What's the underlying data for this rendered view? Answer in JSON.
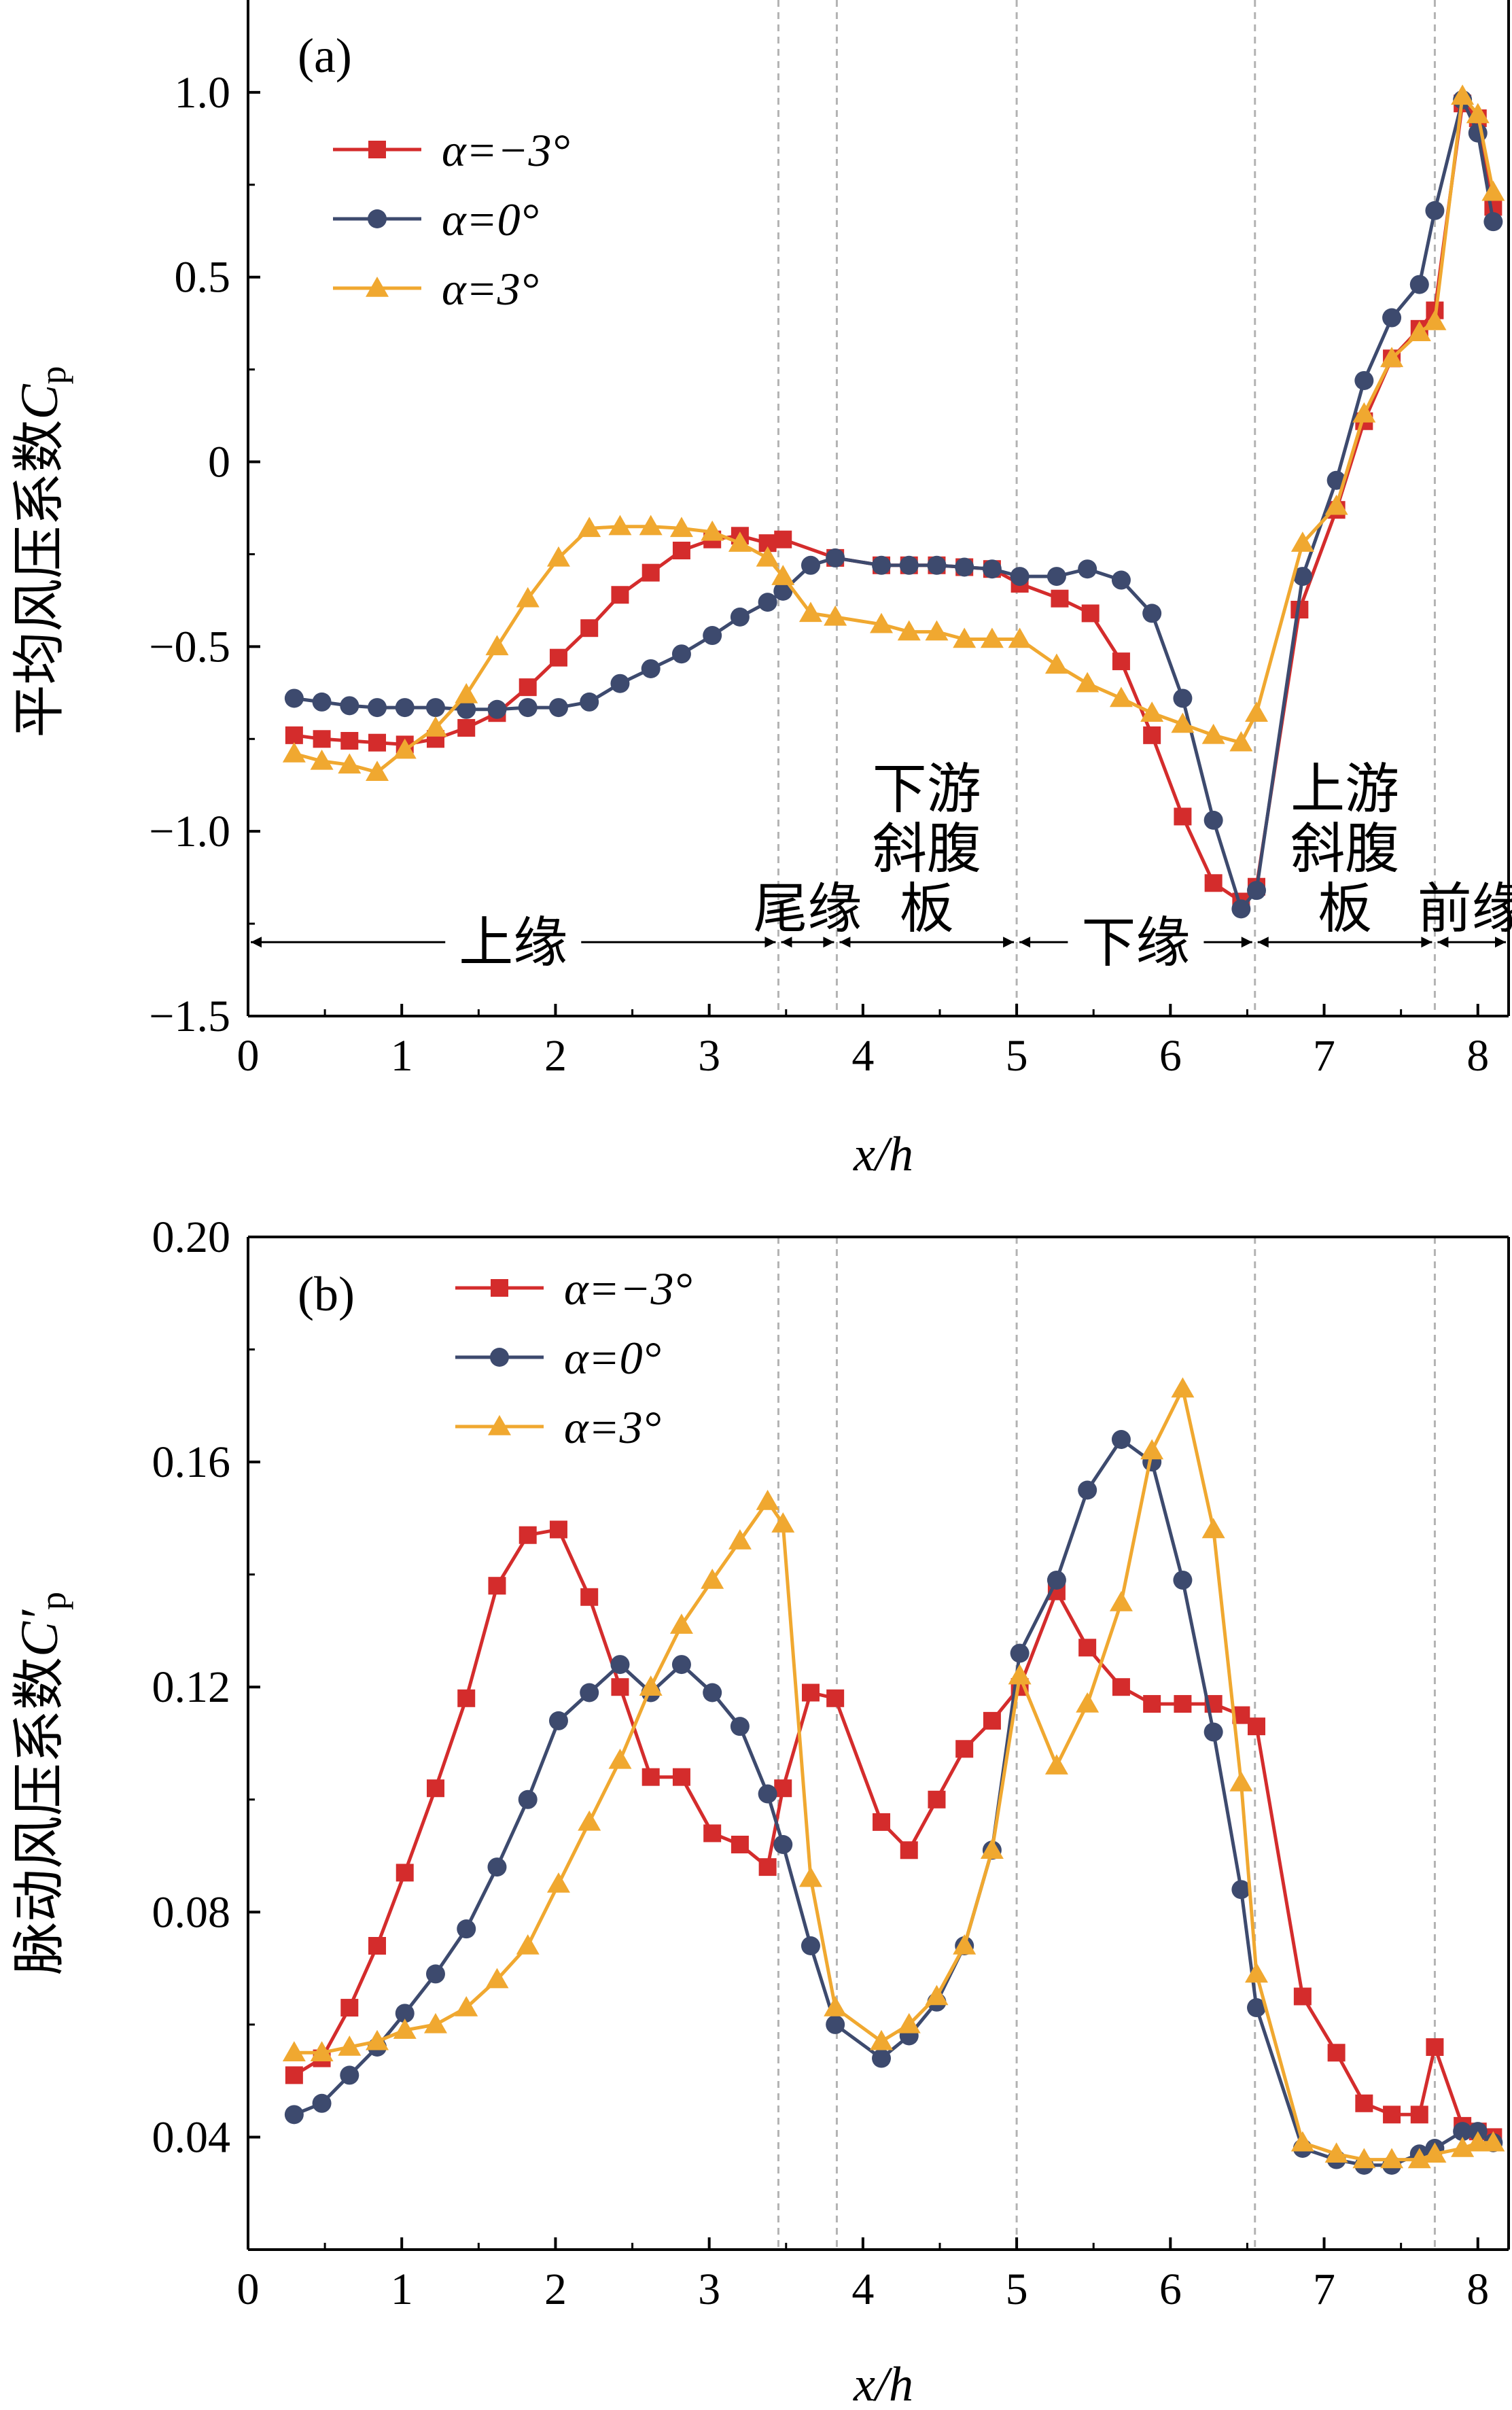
{
  "colors": {
    "alpha_neg3": "#d42c2c",
    "alpha_0": "#3d4a6e",
    "alpha_pos3": "#f0a830",
    "vline": "#b3b3b3"
  },
  "chart_data": [
    {
      "id": "a",
      "type": "line",
      "panel_label": "(a)",
      "ylabel": "平均风压系数C̄p",
      "ylabel_main": "平均风压系数",
      "ylabel_symbol": "C",
      "ylabel_sub": "p",
      "xlabel": "x/h",
      "xlim": [
        0,
        8.2
      ],
      "ylim": [
        -1.5,
        1.25
      ],
      "xticks": [
        "0",
        "1",
        "2",
        "3",
        "4",
        "5",
        "6",
        "7",
        "8"
      ],
      "yticks": [
        {
          "v": 1.0,
          "label": "1.0"
        },
        {
          "v": 0.5,
          "label": "0.5"
        },
        {
          "v": 0,
          "label": "0"
        },
        {
          "v": -0.5,
          "label": "−0.5"
        },
        {
          "v": -1.0,
          "label": "−1.0"
        },
        {
          "v": -1.5,
          "label": "−1.5"
        }
      ],
      "vlines": [
        3.45,
        3.83,
        5.0,
        6.55,
        7.72
      ],
      "regions": [
        {
          "label": "上缘",
          "from": 0,
          "to": 3.45
        },
        {
          "label": "尾缘",
          "from": 3.45,
          "to": 3.83
        },
        {
          "label": "下游斜腹板",
          "from": 3.83,
          "to": 5.0
        },
        {
          "label": "下缘",
          "from": 5.0,
          "to": 6.55
        },
        {
          "label": "上游斜腹板",
          "from": 6.55,
          "to": 7.72
        },
        {
          "label": "前缘",
          "from": 7.72,
          "to": 8.2
        }
      ],
      "legend": {
        "position": "top-left"
      },
      "series": [
        {
          "name": "α=−3°",
          "marker": "square",
          "color_key": "alpha_neg3",
          "x": [
            0.3,
            0.48,
            0.66,
            0.84,
            1.02,
            1.22,
            1.42,
            1.62,
            1.82,
            2.02,
            2.22,
            2.42,
            2.62,
            2.82,
            3.02,
            3.2,
            3.38,
            3.48,
            3.82,
            4.12,
            4.3,
            4.48,
            4.66,
            4.84,
            5.02,
            5.28,
            5.48,
            5.68,
            5.88,
            6.08,
            6.28,
            6.46,
            6.56,
            6.84,
            7.08,
            7.26,
            7.44,
            7.62,
            7.72,
            7.9,
            8.0,
            8.1
          ],
          "y": [
            -0.74,
            -0.75,
            -0.755,
            -0.76,
            -0.765,
            -0.75,
            -0.72,
            -0.68,
            -0.61,
            -0.53,
            -0.45,
            -0.36,
            -0.3,
            -0.24,
            -0.21,
            -0.2,
            -0.22,
            -0.21,
            -0.26,
            -0.28,
            -0.28,
            -0.28,
            -0.285,
            -0.29,
            -0.33,
            -0.37,
            -0.41,
            -0.54,
            -0.74,
            -0.96,
            -1.14,
            -1.19,
            -1.15,
            -0.4,
            -0.13,
            0.11,
            0.28,
            0.36,
            0.41,
            0.97,
            0.93,
            0.69
          ]
        },
        {
          "name": "α=0°",
          "marker": "circle",
          "color_key": "alpha_0",
          "x": [
            0.3,
            0.48,
            0.66,
            0.84,
            1.02,
            1.22,
            1.42,
            1.62,
            1.82,
            2.02,
            2.22,
            2.42,
            2.62,
            2.82,
            3.02,
            3.2,
            3.38,
            3.48,
            3.66,
            3.82,
            4.12,
            4.3,
            4.48,
            4.66,
            4.84,
            5.02,
            5.26,
            5.46,
            5.68,
            5.88,
            6.08,
            6.28,
            6.46,
            6.56,
            6.86,
            7.08,
            7.26,
            7.44,
            7.62,
            7.72,
            7.9,
            8.0,
            8.1
          ],
          "y": [
            -0.64,
            -0.65,
            -0.66,
            -0.665,
            -0.665,
            -0.665,
            -0.67,
            -0.67,
            -0.665,
            -0.665,
            -0.65,
            -0.6,
            -0.56,
            -0.52,
            -0.47,
            -0.42,
            -0.38,
            -0.35,
            -0.28,
            -0.26,
            -0.28,
            -0.28,
            -0.28,
            -0.285,
            -0.29,
            -0.31,
            -0.31,
            -0.29,
            -0.32,
            -0.41,
            -0.64,
            -0.97,
            -1.21,
            -1.16,
            -0.31,
            -0.05,
            0.22,
            0.39,
            0.48,
            0.68,
            0.98,
            0.89,
            0.65
          ]
        },
        {
          "name": "α=3°",
          "marker": "triangle",
          "color_key": "alpha_pos3",
          "x": [
            0.3,
            0.48,
            0.66,
            0.84,
            1.02,
            1.22,
            1.42,
            1.62,
            1.82,
            2.02,
            2.22,
            2.42,
            2.62,
            2.82,
            3.02,
            3.2,
            3.38,
            3.48,
            3.66,
            3.82,
            4.12,
            4.3,
            4.48,
            4.66,
            4.84,
            5.02,
            5.26,
            5.46,
            5.68,
            5.88,
            6.08,
            6.28,
            6.46,
            6.56,
            6.86,
            7.08,
            7.26,
            7.44,
            7.62,
            7.72,
            7.9,
            8.0,
            8.1
          ],
          "y": [
            -0.79,
            -0.81,
            -0.82,
            -0.84,
            -0.78,
            -0.72,
            -0.63,
            -0.5,
            -0.37,
            -0.26,
            -0.18,
            -0.175,
            -0.175,
            -0.18,
            -0.19,
            -0.22,
            -0.26,
            -0.31,
            -0.41,
            -0.42,
            -0.44,
            -0.46,
            -0.46,
            -0.48,
            -0.48,
            -0.48,
            -0.55,
            -0.6,
            -0.64,
            -0.68,
            -0.71,
            -0.74,
            -0.76,
            -0.68,
            -0.22,
            -0.12,
            0.13,
            0.28,
            0.35,
            0.38,
            0.99,
            0.94,
            0.73
          ]
        }
      ]
    },
    {
      "id": "b",
      "type": "line",
      "panel_label": "(b)",
      "ylabel": "脉动风压系数C′p",
      "ylabel_main": "脉动风压系数",
      "ylabel_symbol": "C′",
      "ylabel_sub": "p",
      "xlabel": "x/h",
      "xlim": [
        0,
        8.2
      ],
      "ylim": [
        0.02,
        0.2
      ],
      "xticks": [
        "0",
        "1",
        "2",
        "3",
        "4",
        "5",
        "6",
        "7",
        "8"
      ],
      "yticks": [
        {
          "v": 0.2,
          "label": "0.20"
        },
        {
          "v": 0.16,
          "label": "0.16"
        },
        {
          "v": 0.12,
          "label": "0.12"
        },
        {
          "v": 0.08,
          "label": "0.08"
        },
        {
          "v": 0.04,
          "label": "0.04"
        }
      ],
      "vlines": [
        3.45,
        3.83,
        5.0,
        6.55,
        7.72
      ],
      "legend": {
        "position": "top-left"
      },
      "series": [
        {
          "name": "α=−3°",
          "marker": "square",
          "color_key": "alpha_neg3",
          "x": [
            0.3,
            0.48,
            0.66,
            0.84,
            1.02,
            1.22,
            1.42,
            1.62,
            1.82,
            2.02,
            2.22,
            2.42,
            2.62,
            2.82,
            3.02,
            3.2,
            3.38,
            3.48,
            3.66,
            3.82,
            4.12,
            4.3,
            4.48,
            4.66,
            4.84,
            5.02,
            5.26,
            5.46,
            5.68,
            5.88,
            6.08,
            6.28,
            6.46,
            6.56,
            6.86,
            7.08,
            7.26,
            7.44,
            7.62,
            7.72,
            7.9,
            8.0,
            8.1
          ],
          "y": [
            0.051,
            0.054,
            0.063,
            0.074,
            0.087,
            0.102,
            0.118,
            0.138,
            0.147,
            0.148,
            0.136,
            0.12,
            0.104,
            0.104,
            0.094,
            0.092,
            0.088,
            0.102,
            0.119,
            0.118,
            0.096,
            0.091,
            0.1,
            0.109,
            0.114,
            0.12,
            0.137,
            0.127,
            0.12,
            0.117,
            0.117,
            0.117,
            0.115,
            0.113,
            0.065,
            0.055,
            0.046,
            0.044,
            0.044,
            0.056,
            0.042,
            0.041,
            0.04
          ]
        },
        {
          "name": "α=0°",
          "marker": "circle",
          "color_key": "alpha_0",
          "x": [
            0.3,
            0.48,
            0.66,
            0.84,
            1.02,
            1.22,
            1.42,
            1.62,
            1.82,
            2.02,
            2.22,
            2.42,
            2.62,
            2.82,
            3.02,
            3.2,
            3.38,
            3.48,
            3.66,
            3.82,
            4.12,
            4.3,
            4.48,
            4.66,
            4.84,
            5.02,
            5.26,
            5.46,
            5.68,
            5.88,
            6.08,
            6.28,
            6.46,
            6.56,
            6.86,
            7.08,
            7.26,
            7.44,
            7.62,
            7.72,
            7.9,
            8.0,
            8.1
          ],
          "y": [
            0.044,
            0.046,
            0.051,
            0.056,
            0.062,
            0.069,
            0.077,
            0.088,
            0.1,
            0.114,
            0.119,
            0.124,
            0.119,
            0.124,
            0.119,
            0.113,
            0.101,
            0.092,
            0.074,
            0.06,
            0.054,
            0.058,
            0.064,
            0.074,
            0.091,
            0.126,
            0.139,
            0.155,
            0.164,
            0.16,
            0.139,
            0.112,
            0.084,
            0.063,
            0.038,
            0.036,
            0.035,
            0.035,
            0.037,
            0.038,
            0.041,
            0.041,
            0.039
          ]
        },
        {
          "name": "α=3°",
          "marker": "triangle",
          "color_key": "alpha_pos3",
          "x": [
            0.3,
            0.48,
            0.66,
            0.84,
            1.02,
            1.22,
            1.42,
            1.62,
            1.82,
            2.02,
            2.22,
            2.42,
            2.62,
            2.82,
            3.02,
            3.2,
            3.38,
            3.48,
            3.66,
            3.82,
            4.12,
            4.3,
            4.48,
            4.66,
            4.84,
            5.02,
            5.26,
            5.46,
            5.68,
            5.88,
            6.08,
            6.28,
            6.46,
            6.56,
            6.86,
            7.08,
            7.26,
            7.44,
            7.62,
            7.72,
            7.9,
            8.0,
            8.1
          ],
          "y": [
            0.055,
            0.055,
            0.056,
            0.057,
            0.059,
            0.06,
            0.063,
            0.068,
            0.074,
            0.085,
            0.096,
            0.107,
            0.12,
            0.131,
            0.139,
            0.146,
            0.153,
            0.149,
            0.086,
            0.063,
            0.057,
            0.06,
            0.065,
            0.074,
            0.091,
            0.122,
            0.106,
            0.117,
            0.135,
            0.162,
            0.173,
            0.148,
            0.103,
            0.069,
            0.039,
            0.037,
            0.036,
            0.036,
            0.036,
            0.037,
            0.038,
            0.039,
            0.039
          ]
        }
      ]
    }
  ]
}
